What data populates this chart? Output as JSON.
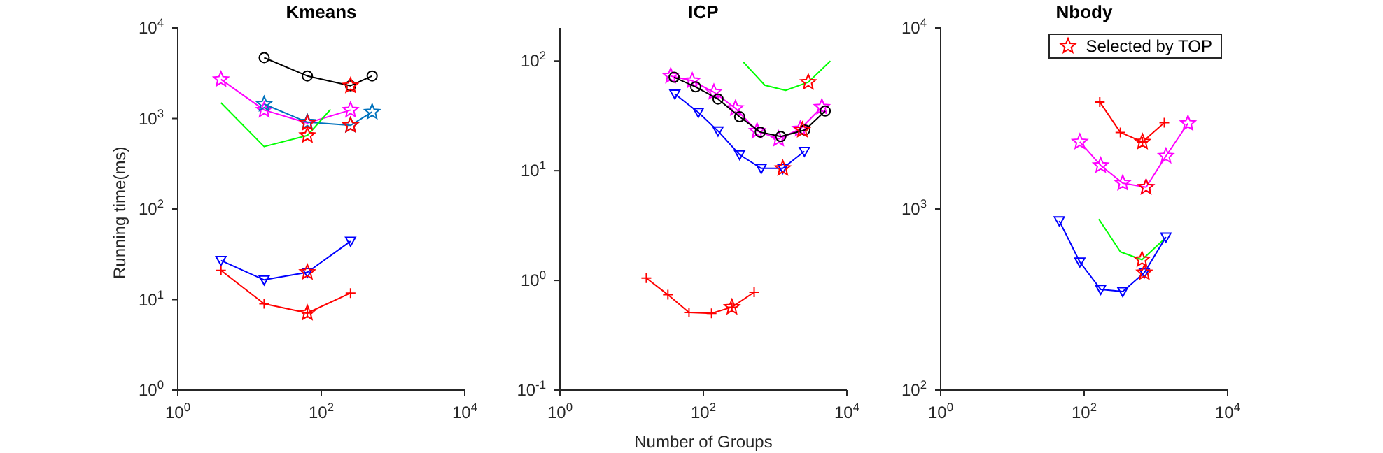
{
  "chart_data": [
    {
      "type": "line",
      "title": "Kmeans",
      "ylabel": "Running time(ms)",
      "log": "xy",
      "grid": false,
      "legend": false,
      "xlim": [
        1,
        10000
      ],
      "xticks": [
        {
          "value": 1,
          "label": "10$^{0}$"
        },
        {
          "value": 100,
          "label": "10$^{2}$"
        },
        {
          "value": 10000,
          "label": "10$^{4}$"
        }
      ],
      "ylim": [
        1,
        10000
      ],
      "yticks": [
        {
          "value": 1,
          "label": "10$^{0}$"
        },
        {
          "value": 10,
          "label": "10$^{1}$"
        },
        {
          "value": 100,
          "label": "10$^{2}$"
        },
        {
          "value": 1000,
          "label": "10$^{3}$"
        },
        {
          "value": 10000,
          "label": "10$^{4}$"
        }
      ],
      "series": [
        {
          "color": "#000000",
          "marker": "circle",
          "x": [
            16,
            64,
            256,
            512
          ],
          "values": [
            4700,
            2950,
            2300,
            2950
          ]
        },
        {
          "color": "#ff00ff",
          "marker": "star",
          "x": [
            4,
            16,
            64,
            256
          ],
          "values": [
            2700,
            1240,
            890,
            1240
          ]
        },
        {
          "color": "#0072bd",
          "marker": "star",
          "x": [
            16,
            64,
            256,
            512
          ],
          "values": [
            1440,
            910,
            840,
            1180
          ]
        },
        {
          "color": "#00ff00",
          "marker": "none",
          "x": [
            4,
            16,
            64,
            135
          ],
          "values": [
            1490,
            490,
            650,
            1260
          ]
        },
        {
          "color": "#0000ff",
          "marker": "triangle",
          "x": [
            4,
            16,
            64,
            256
          ],
          "values": [
            27,
            16.5,
            20,
            44
          ]
        },
        {
          "color": "#ff0000",
          "marker": "cross",
          "x": [
            4,
            16,
            64,
            256
          ],
          "values": [
            21,
            9,
            7.1,
            11.8
          ]
        },
        {
          "type": "scatter",
          "color": "#ff0000",
          "marker": "star",
          "x": [
            256,
            64,
            256,
            64,
            64,
            64
          ],
          "values": [
            2300,
            890,
            840,
            650,
            20,
            7.1
          ]
        }
      ]
    },
    {
      "type": "line",
      "title": "ICP",
      "xlabel": "Number of Groups",
      "log": "xy",
      "grid": false,
      "legend": false,
      "xlim": [
        1,
        10000
      ],
      "xticks": [
        {
          "value": 1,
          "label": "10$^{0}$"
        },
        {
          "value": 100,
          "label": "10$^{2}$"
        },
        {
          "value": 10000,
          "label": "10$^{4}$"
        }
      ],
      "ylim": [
        0.1,
        200
      ],
      "yticks": [
        {
          "value": 0.1,
          "label": "10$^{-1}$"
        },
        {
          "value": 1,
          "label": "10$^{0}$"
        },
        {
          "value": 10,
          "label": "10$^{1}$"
        },
        {
          "value": 100,
          "label": "10$^{2}$"
        }
      ],
      "series": [
        {
          "color": "#00ff00",
          "marker": "none",
          "x": [
            360,
            720,
            1400,
            2900,
            5900
          ],
          "values": [
            98,
            60,
            54,
            64,
            100
          ]
        },
        {
          "color": "#ff00ff",
          "marker": "star",
          "x": [
            35,
            70,
            140,
            280,
            560,
            1120,
            2240,
            4480
          ],
          "values": [
            73,
            66,
            52,
            37,
            23,
            19.5,
            24,
            38
          ]
        },
        {
          "color": "#000000",
          "marker": "circle",
          "x": [
            39,
            78,
            160,
            320,
            620,
            1200,
            2600,
            5000
          ],
          "values": [
            71,
            58,
            45,
            31,
            22.5,
            20.5,
            23.5,
            35
          ]
        },
        {
          "color": "#0000ff",
          "marker": "triangle",
          "x": [
            40,
            85,
            160,
            320,
            640,
            1280,
            2560
          ],
          "values": [
            50,
            34,
            23,
            14,
            10.5,
            10.5,
            15
          ]
        },
        {
          "color": "#ff0000",
          "marker": "cross",
          "x": [
            16,
            32,
            63,
            130,
            250,
            510
          ],
          "values": [
            1.05,
            0.74,
            0.51,
            0.5,
            0.57,
            0.78
          ]
        },
        {
          "type": "scatter",
          "color": "#ff0000",
          "marker": "star",
          "x": [
            2900,
            2400,
            1280,
            250
          ],
          "values": [
            64,
            23.5,
            10.5,
            0.57
          ]
        }
      ]
    },
    {
      "type": "line",
      "title": "Nbody",
      "log": "xy",
      "grid": false,
      "legend": "top right",
      "xlim": [
        1,
        10000
      ],
      "xticks": [
        {
          "value": 1,
          "label": "10$^{0}$"
        },
        {
          "value": 100,
          "label": "10$^{2}$"
        },
        {
          "value": 10000,
          "label": "10$^{4}$"
        }
      ],
      "ylim": [
        100,
        10000
      ],
      "yticks": [
        {
          "value": 100,
          "label": "10$^{2}$"
        },
        {
          "value": 1000,
          "label": "10$^{3}$"
        },
        {
          "value": 10000,
          "label": "10$^{4}$"
        }
      ],
      "series": [
        {
          "color": "#ff0000",
          "marker": "cross",
          "x": [
            165,
            320,
            650,
            1310
          ],
          "values": [
            3900,
            2650,
            2350,
            3000
          ]
        },
        {
          "color": "#ff00ff",
          "marker": "star",
          "x": [
            87,
            170,
            345,
            730,
            1380,
            2800
          ],
          "values": [
            2350,
            1740,
            1390,
            1320,
            1960,
            2970
          ]
        },
        {
          "color": "#00ff00",
          "marker": "none",
          "x": [
            160,
            320,
            640,
            1350
          ],
          "values": [
            880,
            580,
            525,
            690
          ]
        },
        {
          "color": "#0000ff",
          "marker": "triangle",
          "x": [
            45,
            87,
            170,
            345,
            690,
            1380
          ],
          "values": [
            860,
            510,
            360,
            350,
            445,
            700
          ]
        },
        {
          "type": "scatter",
          "name": "Selected by TOP",
          "color": "#ff0000",
          "marker": "star",
          "x": [
            650,
            730,
            640,
            690
          ],
          "values": [
            2350,
            1320,
            525,
            445
          ]
        }
      ]
    }
  ]
}
